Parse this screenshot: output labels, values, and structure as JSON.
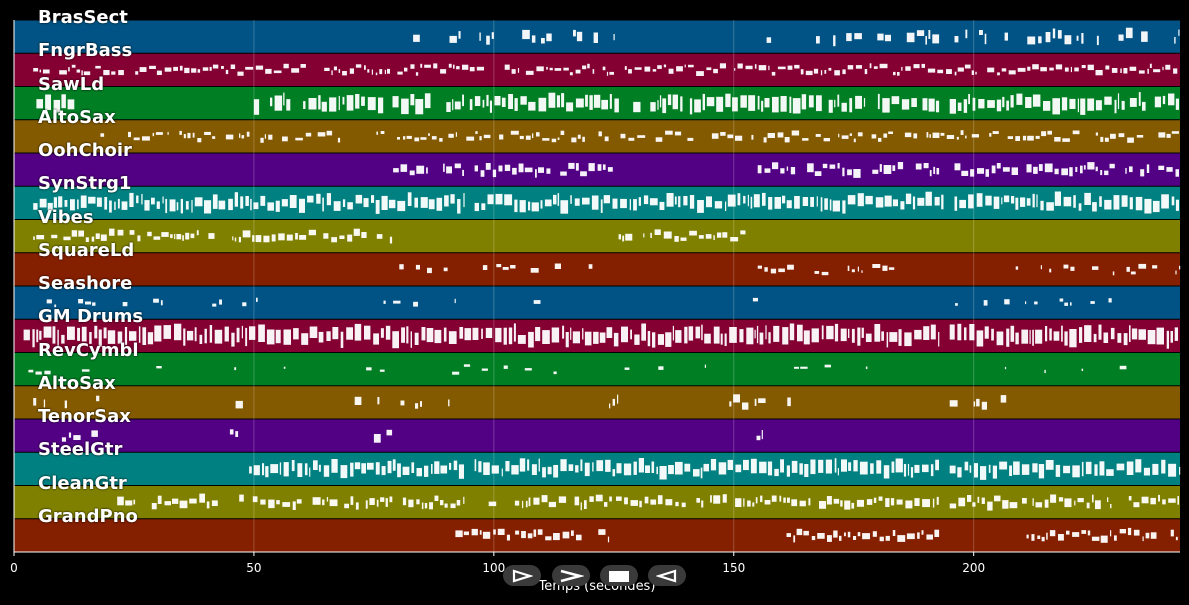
{
  "chart_data": {
    "type": "piano-roll",
    "xlabel": "Temps (secondes)",
    "xlim": [
      0,
      243
    ],
    "x_ticks": [
      0,
      50,
      100,
      150,
      200
    ],
    "grid": true,
    "tracks": [
      {
        "name": "BrasSect",
        "color": "#005384",
        "density": 0.5,
        "thick": 0.3,
        "segments": [
          [
            79,
            94
          ],
          [
            97,
            125
          ],
          [
            155,
            163
          ],
          [
            166,
            193
          ],
          [
            196,
            218
          ],
          [
            215,
            243
          ]
        ]
      },
      {
        "name": "FngrBass",
        "color": "#840032",
        "density": 0.9,
        "thick": 0.15,
        "segments": [
          [
            4,
            243
          ]
        ]
      },
      {
        "name": "SawLd",
        "color": "#007e24",
        "density": 0.9,
        "thick": 0.45,
        "segments": [
          [
            4,
            13
          ],
          [
            50,
            94
          ],
          [
            95,
            155
          ],
          [
            155,
            193
          ],
          [
            195,
            243
          ]
        ]
      },
      {
        "name": "AltoSax",
        "color": "#845a00",
        "density": 0.7,
        "thick": 0.15,
        "segments": [
          [
            18,
            243
          ]
        ]
      },
      {
        "name": "OohChoir",
        "color": "#520084",
        "density": 0.9,
        "thick": 0.25,
        "segments": [
          [
            79,
            94
          ],
          [
            96,
            125
          ],
          [
            155,
            193
          ],
          [
            196,
            243
          ]
        ]
      },
      {
        "name": "SynStrg1",
        "color": "#008080",
        "density": 1.0,
        "thick": 0.4,
        "segments": [
          [
            4,
            94
          ],
          [
            96,
            194
          ],
          [
            196,
            243
          ]
        ]
      },
      {
        "name": "Vibes",
        "color": "#808000",
        "density": 0.8,
        "thick": 0.2,
        "segments": [
          [
            4,
            79
          ],
          [
            126,
            155
          ]
        ]
      },
      {
        "name": "SquareLd",
        "color": "#841f00",
        "density": 0.5,
        "thick": 0.15,
        "segments": [
          [
            79,
            94
          ],
          [
            96,
            121
          ],
          [
            155,
            163
          ],
          [
            165,
            193
          ],
          [
            205,
            210
          ],
          [
            214,
            243
          ]
        ]
      },
      {
        "name": "Seashore",
        "color": "#005384",
        "density": 0.3,
        "thick": 0.15,
        "segments": [
          [
            4,
            53
          ],
          [
            75,
            94
          ],
          [
            107,
            112
          ],
          [
            124,
            126
          ],
          [
            154,
            163
          ],
          [
            178,
            180
          ],
          [
            193,
            215
          ],
          [
            217,
            243
          ]
        ]
      },
      {
        "name": "GM Drums",
        "color": "#840032",
        "density": 1.0,
        "thick": 0.5,
        "segments": [
          [
            2,
            193
          ],
          [
            195,
            243
          ]
        ]
      },
      {
        "name": "RevCymbl",
        "color": "#007e24",
        "density": 0.15,
        "thick": 0.1,
        "segments": [
          [
            3,
            243
          ]
        ]
      },
      {
        "name": "AltoSax",
        "color": "#845a00",
        "density": 0.4,
        "thick": 0.25,
        "segments": [
          [
            4,
            18
          ],
          [
            41,
            48
          ],
          [
            71,
            94
          ],
          [
            124,
            126
          ],
          [
            148,
            163
          ],
          [
            195,
            212
          ]
        ]
      },
      {
        "name": "TenorSax",
        "color": "#520084",
        "density": 0.5,
        "thick": 0.25,
        "segments": [
          [
            7,
            18
          ],
          [
            45,
            48
          ],
          [
            75,
            79
          ],
          [
            152,
            156
          ]
        ]
      },
      {
        "name": "SteelGtr",
        "color": "#008080",
        "density": 1.0,
        "thick": 0.4,
        "segments": [
          [
            49,
            94
          ],
          [
            96,
            193
          ],
          [
            195,
            243
          ]
        ]
      },
      {
        "name": "CleanGtr",
        "color": "#808000",
        "density": 0.85,
        "thick": 0.25,
        "segments": [
          [
            20,
            94
          ],
          [
            96,
            193
          ],
          [
            195,
            243
          ]
        ]
      },
      {
        "name": "GrandPno",
        "color": "#841f00",
        "density": 0.9,
        "thick": 0.2,
        "segments": [
          [
            92,
            124
          ],
          [
            161,
            193
          ],
          [
            211,
            243
          ]
        ]
      }
    ]
  },
  "controls": [
    {
      "name": "play",
      "icon": "play-icon"
    },
    {
      "name": "forward",
      "icon": "chevron-right-icon"
    },
    {
      "name": "stop",
      "icon": "stop-icon"
    },
    {
      "name": "rewind",
      "icon": "rewind-icon"
    }
  ]
}
